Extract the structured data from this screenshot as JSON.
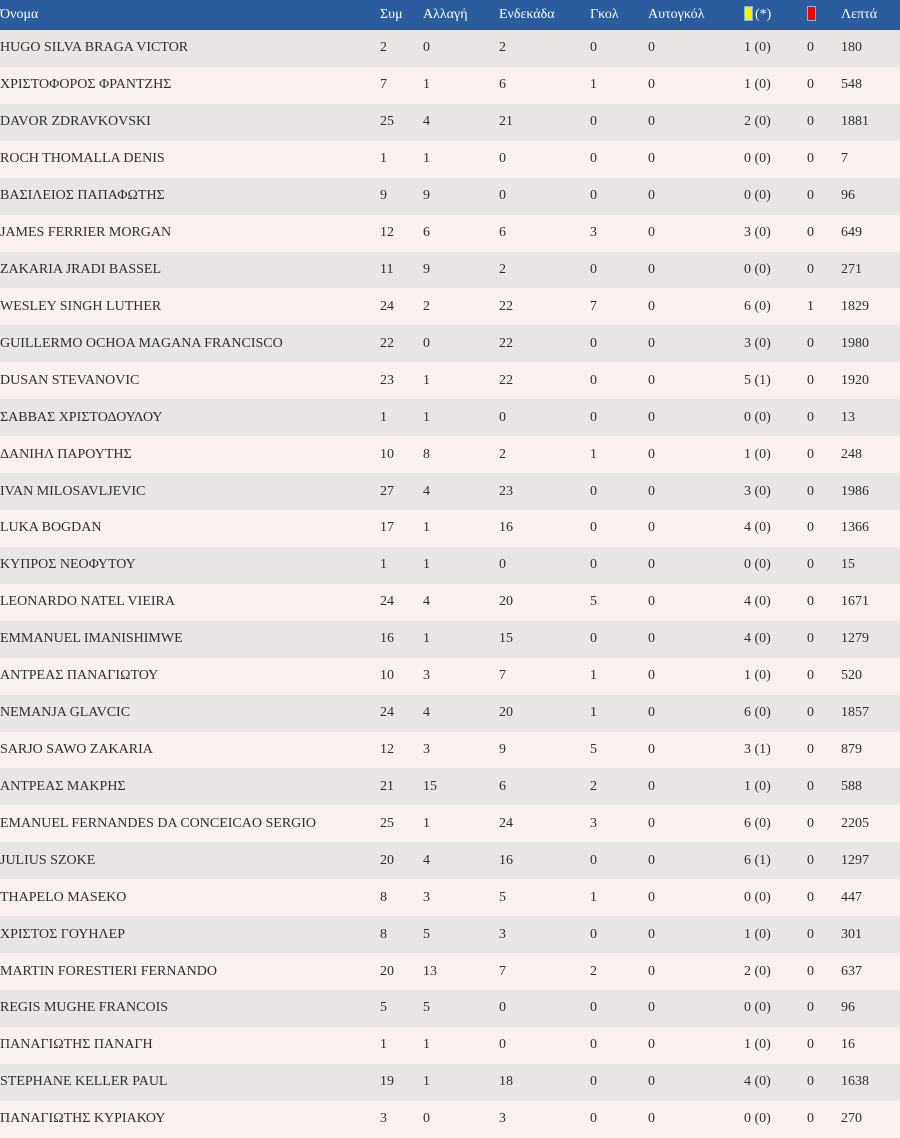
{
  "colors": {
    "header_bg": "#2b5c9e",
    "header_text": "#ffffff",
    "row_odd_bg": "#e9e5e5",
    "row_even_bg": "#f9f1f0",
    "row_text": "#2e2e2e",
    "yellow_card": "#fced00",
    "red_card": "#f30000",
    "card_border": "#74bbe8"
  },
  "table": {
    "columns": [
      {
        "key": "name",
        "label": "Όνομα"
      },
      {
        "key": "matches",
        "label": "Συμ"
      },
      {
        "key": "sub",
        "label": "Αλλαγή"
      },
      {
        "key": "starting",
        "label": "Ενδεκάδα"
      },
      {
        "key": "goals",
        "label": "Γκολ"
      },
      {
        "key": "own-goals",
        "label": "Αυτογκόλ"
      },
      {
        "key": "yellow-cards",
        "label": "(*)",
        "icon": "yellow-card-icon"
      },
      {
        "key": "red-cards",
        "label": "",
        "icon": "red-card-icon"
      },
      {
        "key": "minutes",
        "label": "Λεπτά"
      }
    ],
    "rows": [
      [
        "HUGO SILVA BRAGA VICTOR",
        "2",
        "0",
        "2",
        "0",
        "0",
        "1 (0)",
        "0",
        "180"
      ],
      [
        "ΧΡΙΣΤΟΦΟΡΟΣ ΦΡΑΝΤΖΗΣ",
        "7",
        "1",
        "6",
        "1",
        "0",
        "1 (0)",
        "0",
        "548"
      ],
      [
        "DAVOR ZDRAVKOVSKI",
        "25",
        "4",
        "21",
        "0",
        "0",
        "2 (0)",
        "0",
        "1881"
      ],
      [
        "ROCH THOMALLA DENIS",
        "1",
        "1",
        "0",
        "0",
        "0",
        "0 (0)",
        "0",
        "7"
      ],
      [
        "ΒΑΣΙΛΕΙΟΣ ΠΑΠΑΦΩΤΗΣ",
        "9",
        "9",
        "0",
        "0",
        "0",
        "0 (0)",
        "0",
        "96"
      ],
      [
        "JAMES FERRIER MORGAN",
        "12",
        "6",
        "6",
        "3",
        "0",
        "3 (0)",
        "0",
        "649"
      ],
      [
        "ZAKARIA JRADI BASSEL",
        "11",
        "9",
        "2",
        "0",
        "0",
        "0 (0)",
        "0",
        "271"
      ],
      [
        "WESLEY SINGH LUTHER",
        "24",
        "2",
        "22",
        "7",
        "0",
        "6 (0)",
        "1",
        "1829"
      ],
      [
        "GUILLERMO OCHOA MAGANA FRANCISCO",
        "22",
        "0",
        "22",
        "0",
        "0",
        "3 (0)",
        "0",
        "1980"
      ],
      [
        "DUSAN STEVANOVIC",
        "23",
        "1",
        "22",
        "0",
        "0",
        "5 (1)",
        "0",
        "1920"
      ],
      [
        "ΣΑΒΒΑΣ ΧΡΙΣΤΟΔΟΥΛΟΥ",
        "1",
        "1",
        "0",
        "0",
        "0",
        "0 (0)",
        "0",
        "13"
      ],
      [
        "ΔΑΝΙΗΛ ΠΑΡΟΥΤΗΣ",
        "10",
        "8",
        "2",
        "1",
        "0",
        "1 (0)",
        "0",
        "248"
      ],
      [
        "IVAN MILOSAVLJEVIC",
        "27",
        "4",
        "23",
        "0",
        "0",
        "3 (0)",
        "0",
        "1986"
      ],
      [
        "LUKA BOGDAN",
        "17",
        "1",
        "16",
        "0",
        "0",
        "4 (0)",
        "0",
        "1366"
      ],
      [
        "ΚΥΠΡΟΣ ΝΕΟΦΥΤΟΥ",
        "1",
        "1",
        "0",
        "0",
        "0",
        "0 (0)",
        "0",
        "15"
      ],
      [
        "LEONARDO NATEL VIEIRA",
        "24",
        "4",
        "20",
        "5",
        "0",
        "4 (0)",
        "0",
        "1671"
      ],
      [
        "EMMANUEL IMANISHIMWE",
        "16",
        "1",
        "15",
        "0",
        "0",
        "4 (0)",
        "0",
        "1279"
      ],
      [
        "ΑΝΤΡΕΑΣ ΠΑΝΑΓΙΩΤΟΥ",
        "10",
        "3",
        "7",
        "1",
        "0",
        "1 (0)",
        "0",
        "520"
      ],
      [
        "NEMANJA GLAVCIC",
        "24",
        "4",
        "20",
        "1",
        "0",
        "6 (0)",
        "0",
        "1857"
      ],
      [
        "SARJO SAWO ZAKARIA",
        "12",
        "3",
        "9",
        "5",
        "0",
        "3 (1)",
        "0",
        "879"
      ],
      [
        "ΑΝΤΡΕΑΣ ΜΑΚΡΗΣ",
        "21",
        "15",
        "6",
        "2",
        "0",
        "1 (0)",
        "0",
        "588"
      ],
      [
        "EMANUEL FERNANDES DA CONCEICAO SERGIO",
        "25",
        "1",
        "24",
        "3",
        "0",
        "6 (0)",
        "0",
        "2205"
      ],
      [
        "JULIUS SZOKE",
        "20",
        "4",
        "16",
        "0",
        "0",
        "6 (1)",
        "0",
        "1297"
      ],
      [
        "THAPELO MASEKO",
        "8",
        "3",
        "5",
        "1",
        "0",
        "0 (0)",
        "0",
        "447"
      ],
      [
        "ΧΡΙΣΤΟΣ ΓΟΥΗΛΕΡ",
        "8",
        "5",
        "3",
        "0",
        "0",
        "1 (0)",
        "0",
        "301"
      ],
      [
        "MARTIN FORESTIERI FERNANDO",
        "20",
        "13",
        "7",
        "2",
        "0",
        "2 (0)",
        "0",
        "637"
      ],
      [
        "REGIS MUGHE FRANCOIS",
        "5",
        "5",
        "0",
        "0",
        "0",
        "0 (0)",
        "0",
        "96"
      ],
      [
        "ΠΑΝΑΓΙΩΤΗΣ ΠΑΝΑΓΗ",
        "1",
        "1",
        "0",
        "0",
        "0",
        "1 (0)",
        "0",
        "16"
      ],
      [
        "STEPHANE KELLER PAUL",
        "19",
        "1",
        "18",
        "0",
        "0",
        "4 (0)",
        "0",
        "1638"
      ],
      [
        "ΠΑΝΑΓΙΩΤΗΣ ΚΥΡΙΑΚΟΥ",
        "3",
        "0",
        "3",
        "0",
        "0",
        "0 (0)",
        "0",
        "270"
      ]
    ]
  }
}
